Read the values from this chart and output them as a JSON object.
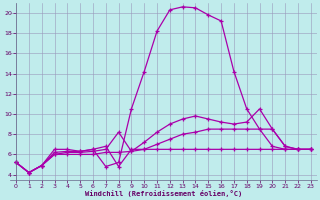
{
  "xlabel": "Windchill (Refroidissement éolien,°C)",
  "background_color": "#c0ecec",
  "line_color": "#aa00aa",
  "grid_color": "#9999bb",
  "xlim": [
    -0.5,
    23.5
  ],
  "ylim": [
    3.5,
    21.0
  ],
  "yticks": [
    4,
    6,
    8,
    10,
    12,
    14,
    16,
    18,
    20
  ],
  "xticks": [
    0,
    1,
    2,
    3,
    4,
    5,
    6,
    7,
    8,
    9,
    10,
    11,
    12,
    13,
    14,
    15,
    16,
    17,
    18,
    19,
    20,
    21,
    22,
    23
  ],
  "lines": [
    {
      "x": [
        0,
        1,
        2,
        3,
        4,
        5,
        6,
        7,
        8,
        9,
        10,
        11,
        12,
        13,
        14,
        15,
        16,
        17,
        18,
        19,
        20,
        21,
        22,
        23
      ],
      "y": [
        5.2,
        4.2,
        4.9,
        6.5,
        6.5,
        6.3,
        6.5,
        4.8,
        5.2,
        10.5,
        14.2,
        18.2,
        20.3,
        20.6,
        20.5,
        19.8,
        19.2,
        14.2,
        10.5,
        8.5,
        6.8,
        6.5,
        6.5,
        6.5
      ]
    },
    {
      "x": [
        0,
        1,
        2,
        3,
        4,
        5,
        6,
        7,
        8,
        9,
        10,
        11,
        12,
        13,
        14,
        15,
        16,
        17,
        18,
        19,
        20,
        21,
        22,
        23
      ],
      "y": [
        5.2,
        4.2,
        4.9,
        6.2,
        6.3,
        6.3,
        6.5,
        6.8,
        4.8,
        6.5,
        6.5,
        6.5,
        6.5,
        6.5,
        6.5,
        6.5,
        6.5,
        6.5,
        6.5,
        6.5,
        6.5,
        6.5,
        6.5,
        6.5
      ]
    },
    {
      "x": [
        0,
        1,
        2,
        3,
        4,
        5,
        6,
        7,
        8,
        9,
        10,
        11,
        12,
        13,
        14,
        15,
        16,
        17,
        18,
        19,
        20,
        21,
        22,
        23
      ],
      "y": [
        5.2,
        4.2,
        4.9,
        6.0,
        6.2,
        6.2,
        6.3,
        6.5,
        8.2,
        6.3,
        7.2,
        8.2,
        9.0,
        9.5,
        9.8,
        9.5,
        9.2,
        9.0,
        9.2,
        10.5,
        8.5,
        6.8,
        6.5,
        6.5
      ]
    },
    {
      "x": [
        0,
        1,
        2,
        3,
        4,
        5,
        6,
        7,
        8,
        9,
        10,
        11,
        12,
        13,
        14,
        15,
        16,
        17,
        18,
        19,
        20,
        21,
        22,
        23
      ],
      "y": [
        5.2,
        4.2,
        4.9,
        6.0,
        6.0,
        6.0,
        6.0,
        6.2,
        6.2,
        6.3,
        6.5,
        7.0,
        7.5,
        8.0,
        8.2,
        8.5,
        8.5,
        8.5,
        8.5,
        8.5,
        8.5,
        6.8,
        6.5,
        6.5
      ]
    }
  ]
}
